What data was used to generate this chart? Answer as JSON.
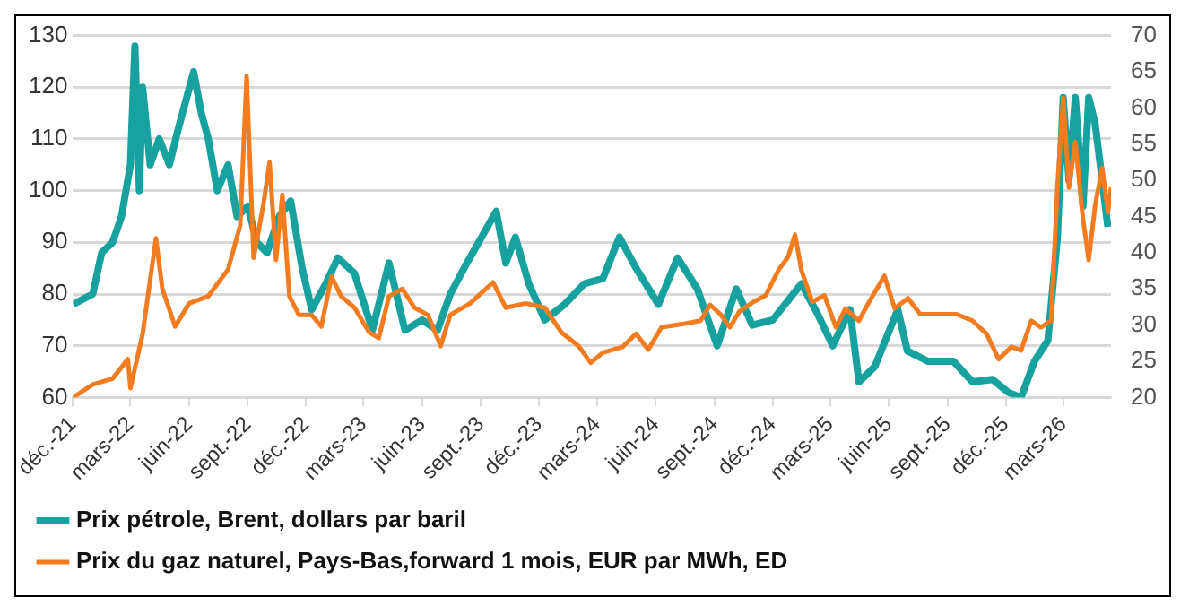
{
  "chart_data": {
    "type": "line",
    "xlim": [
      "2021-12-01",
      "2026-05-15"
    ],
    "xticks": [
      {
        "value": "2021-12",
        "label": "déc.-21"
      },
      {
        "value": "2022-03",
        "label": "mars-22"
      },
      {
        "value": "2022-06",
        "label": "juin-22"
      },
      {
        "value": "2022-09",
        "label": "sept.-22"
      },
      {
        "value": "2022-12",
        "label": "déc.-22"
      },
      {
        "value": "2023-03",
        "label": "mars-23"
      },
      {
        "value": "2023-06",
        "label": "juin-23"
      },
      {
        "value": "2023-09",
        "label": "sept.-23"
      },
      {
        "value": "2023-12",
        "label": "déc.-23"
      },
      {
        "value": "2024-03",
        "label": "mars-24"
      },
      {
        "value": "2024-06",
        "label": "juin-24"
      },
      {
        "value": "2024-09",
        "label": "sept.-24"
      },
      {
        "value": "2024-12",
        "label": "déc.-24"
      },
      {
        "value": "2025-03",
        "label": "mars-25"
      },
      {
        "value": "2025-06",
        "label": "juin-25"
      },
      {
        "value": "2025-09",
        "label": "sept.-25"
      },
      {
        "value": "2025-12",
        "label": "déc.-25"
      },
      {
        "value": "2026-03",
        "label": "mars-26"
      }
    ],
    "ylim": [
      60,
      130
    ],
    "yticks": [
      60,
      70,
      80,
      90,
      100,
      110,
      120,
      130
    ],
    "y2lim": [
      20,
      70
    ],
    "y2ticks": [
      20,
      25,
      30,
      35,
      40,
      45,
      50,
      55,
      60,
      65,
      70
    ],
    "grid": "y",
    "legend": "bottom",
    "marker": "none",
    "line_style": "solid",
    "series": [
      {
        "name": "Prix pétrole, Brent, dollars par baril",
        "color": "#17a2a0",
        "x": [
          "2021-12-01",
          "2022-01-01",
          "2022-01-15",
          "2022-02-01",
          "2022-02-15",
          "2022-03-01",
          "2022-03-08",
          "2022-03-15",
          "2022-03-20",
          "2022-04-01",
          "2022-04-15",
          "2022-05-01",
          "2022-05-15",
          "2022-06-08",
          "2022-06-20",
          "2022-07-01",
          "2022-07-15",
          "2022-08-01",
          "2022-08-15",
          "2022-09-01",
          "2022-09-15",
          "2022-10-01",
          "2022-10-20",
          "2022-11-07",
          "2022-11-25",
          "2022-12-10",
          "2023-01-01",
          "2023-01-20",
          "2023-02-15",
          "2023-03-15",
          "2023-04-10",
          "2023-05-05",
          "2023-06-01",
          "2023-06-25",
          "2023-07-15",
          "2023-08-10",
          "2023-09-25",
          "2023-10-10",
          "2023-10-25",
          "2023-11-15",
          "2023-12-10",
          "2024-01-10",
          "2024-02-10",
          "2024-03-10",
          "2024-04-05",
          "2024-05-01",
          "2024-06-05",
          "2024-07-05",
          "2024-08-05",
          "2024-09-05",
          "2024-10-05",
          "2024-10-30",
          "2024-12-01",
          "2025-01-15",
          "2025-02-10",
          "2025-03-05",
          "2025-04-01",
          "2025-04-15",
          "2025-05-10",
          "2025-06-15",
          "2025-06-30",
          "2025-08-01",
          "2025-09-10",
          "2025-10-10",
          "2025-11-10",
          "2025-12-05",
          "2025-12-25",
          "2026-01-15",
          "2026-02-05",
          "2026-02-20",
          "2026-03-01",
          "2026-03-10",
          "2026-03-20",
          "2026-04-01",
          "2026-04-10",
          "2026-04-20",
          "2026-05-10"
        ],
        "values": [
          78,
          80,
          88,
          90,
          95,
          105,
          128,
          100,
          120,
          105,
          110,
          105,
          112,
          123,
          115,
          110,
          100,
          105,
          95,
          97,
          90,
          88,
          95,
          98,
          85,
          77,
          82,
          87,
          84,
          73,
          86,
          73,
          75,
          73,
          80,
          86,
          96,
          86,
          91,
          82,
          75,
          78,
          82,
          83,
          91,
          85,
          78,
          87,
          81,
          70,
          81,
          74,
          75,
          82,
          76,
          70,
          77,
          63,
          66,
          77,
          69,
          67,
          67,
          63,
          63.5,
          61,
          60,
          67,
          71,
          91,
          118,
          102,
          118,
          97,
          118,
          113,
          93
        ]
      },
      {
        "name": "Prix du gaz naturel, Pays-Bas,forward 1 mois, EUR par MWh, ED",
        "color": "#f47c20",
        "axis": "y2",
        "x": [
          "2021-12-01",
          "2022-01-01",
          "2022-02-01",
          "2022-02-25",
          "2022-03-01",
          "2022-03-20",
          "2022-04-10",
          "2022-04-20",
          "2022-05-10",
          "2022-06-01",
          "2022-07-01",
          "2022-08-01",
          "2022-08-20",
          "2022-08-30",
          "2022-09-10",
          "2022-09-25",
          "2022-10-05",
          "2022-10-15",
          "2022-10-25",
          "2022-11-05",
          "2022-11-20",
          "2022-12-10",
          "2022-12-25",
          "2023-01-10",
          "2023-01-25",
          "2023-02-15",
          "2023-03-10",
          "2023-03-25",
          "2023-04-10",
          "2023-05-01",
          "2023-05-20",
          "2023-06-10",
          "2023-06-30",
          "2023-07-15",
          "2023-08-15",
          "2023-09-20",
          "2023-10-10",
          "2023-11-10",
          "2023-12-10",
          "2024-01-05",
          "2024-02-01",
          "2024-02-20",
          "2024-03-10",
          "2024-04-10",
          "2024-05-01",
          "2024-05-20",
          "2024-06-10",
          "2024-07-10",
          "2024-08-10",
          "2024-08-25",
          "2024-09-10",
          "2024-09-25",
          "2024-10-10",
          "2024-11-01",
          "2024-11-20",
          "2024-12-10",
          "2024-12-25",
          "2025-01-05",
          "2025-01-15",
          "2025-02-01",
          "2025-02-20",
          "2025-03-10",
          "2025-03-25",
          "2025-04-15",
          "2025-05-01",
          "2025-05-25",
          "2025-06-10",
          "2025-07-01",
          "2025-07-20",
          "2025-08-10",
          "2025-09-15",
          "2025-10-10",
          "2025-11-01",
          "2025-11-20",
          "2025-12-10",
          "2025-12-25",
          "2026-01-10",
          "2026-01-25",
          "2026-02-10",
          "2026-02-20",
          "2026-03-01",
          "2026-03-10",
          "2026-03-20",
          "2026-04-01",
          "2026-04-10",
          "2026-04-20",
          "2026-05-01",
          "2026-05-10",
          "2026-05-15"
        ],
        "values": [
          20,
          21.8,
          22.6,
          25.3,
          21.3,
          28.7,
          42,
          35,
          29.8,
          33,
          34,
          37.7,
          43.8,
          64.4,
          39.3,
          46.5,
          52.5,
          39,
          48,
          34,
          31.4,
          31.4,
          29.8,
          36.7,
          34,
          32.4,
          29,
          28.2,
          34,
          35,
          32.4,
          31.4,
          27.1,
          31.4,
          33,
          35.9,
          32.4,
          33,
          32.4,
          29,
          27.1,
          24.8,
          26.2,
          27,
          28.8,
          26.6,
          29.7,
          30.1,
          30.6,
          32.8,
          31.5,
          29.7,
          31.9,
          33.2,
          34.1,
          37.6,
          39.4,
          42.5,
          37.6,
          33.2,
          34.1,
          29.7,
          32.3,
          30.6,
          33.2,
          36.8,
          32.3,
          33.7,
          31.5,
          31.5,
          31.5,
          30.6,
          28.8,
          25.3,
          27,
          26.5,
          30.6,
          29.7,
          30.6,
          49.1,
          61.4,
          49,
          55.3,
          44.7,
          39,
          46.5,
          51.7,
          45.6,
          49
        ]
      }
    ]
  }
}
